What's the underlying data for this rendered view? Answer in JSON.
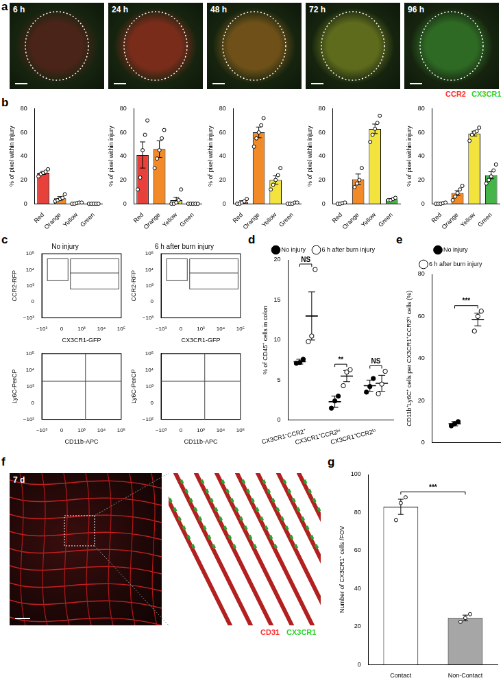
{
  "panel_labels": [
    "a",
    "b",
    "c",
    "d",
    "e",
    "f",
    "g"
  ],
  "images": {
    "a": {
      "times": [
        "6 h",
        "24 h",
        "48 h",
        "72 h",
        "96 h"
      ],
      "channels": [
        {
          "name": "CCR2",
          "color": "#ff3030"
        },
        {
          "name": "CX3CR1",
          "color": "#30d030"
        }
      ]
    },
    "f": {
      "time": "7 d",
      "channels": [
        {
          "name": "CD31",
          "color": "#ff3030"
        },
        {
          "name": "CX3CR1",
          "color": "#30d030"
        }
      ]
    }
  },
  "chart_data": [
    {
      "type": "bar",
      "categories": [
        "Red",
        "Orange",
        "Yellow",
        "Green"
      ],
      "values": [
        26,
        4.5,
        0.4,
        0
      ],
      "errors": [
        1.3,
        1.5,
        0.3,
        0
      ],
      "points": [
        [
          23,
          25,
          26,
          27,
          29
        ],
        [
          2,
          3,
          4,
          5,
          8
        ],
        [
          0,
          0,
          0.5,
          1,
          1
        ],
        [
          0,
          0,
          0,
          0,
          0
        ]
      ],
      "colors": [
        "#e8413c",
        "#f28a27",
        "#f2e33f",
        "#45b549"
      ],
      "y_label": "% of pixel within injury",
      "ylim": [
        0,
        80
      ],
      "yticks": [
        0,
        20,
        40,
        60,
        80
      ]
    },
    {
      "type": "bar",
      "categories": [
        "Red",
        "Orange",
        "Yellow",
        "Green"
      ],
      "values": [
        41,
        46,
        3,
        0
      ],
      "errors": [
        11,
        7,
        2.5,
        0
      ],
      "points": [
        [
          12,
          22,
          45,
          58,
          70
        ],
        [
          30,
          38,
          45,
          55,
          62
        ],
        [
          0,
          0,
          1,
          3,
          12
        ],
        [
          0,
          0,
          0,
          0,
          0
        ]
      ],
      "colors": [
        "#e8413c",
        "#f28a27",
        "#f2e33f",
        "#45b549"
      ],
      "y_label": "% of pixel within injury",
      "ylim": [
        0,
        80
      ],
      "yticks": [
        0,
        20,
        40,
        60,
        80
      ]
    },
    {
      "type": "bar",
      "categories": [
        "Red",
        "Orange",
        "Yellow",
        "Green"
      ],
      "values": [
        1.5,
        60,
        20,
        0.5
      ],
      "errors": [
        1,
        4.5,
        3.5,
        0.3
      ],
      "points": [
        [
          0,
          0,
          1,
          2,
          4
        ],
        [
          48,
          55,
          60,
          66,
          72
        ],
        [
          12,
          16,
          20,
          24,
          30
        ],
        [
          0,
          0,
          0,
          1,
          1
        ]
      ],
      "colors": [
        "#e8413c",
        "#f28a27",
        "#f2e33f",
        "#45b549"
      ],
      "y_label": "% of pixel within injury",
      "ylim": [
        0,
        80
      ],
      "yticks": [
        0,
        20,
        40,
        60,
        80
      ]
    },
    {
      "type": "bar",
      "categories": [
        "Red",
        "Orange",
        "Yellow",
        "Green"
      ],
      "values": [
        0.4,
        20.5,
        63,
        3.8
      ],
      "errors": [
        0.3,
        4.5,
        4,
        0.5
      ],
      "points": [
        [
          0,
          0,
          0.5,
          1
        ],
        [
          14,
          17,
          20,
          30
        ],
        [
          52,
          58,
          63,
          68,
          74
        ],
        [
          3,
          3,
          4,
          5
        ]
      ],
      "colors": [
        "#e8413c",
        "#f28a27",
        "#f2e33f",
        "#45b549"
      ],
      "y_label": "% of pixel within injury",
      "ylim": [
        0,
        80
      ],
      "yticks": [
        0,
        20,
        40,
        60,
        80
      ]
    },
    {
      "type": "bar",
      "categories": [
        "Red",
        "Orange",
        "Yellow",
        "Green"
      ],
      "values": [
        0.3,
        9,
        59,
        24
      ],
      "errors": [
        0.2,
        2,
        2,
        3
      ],
      "points": [
        [
          0,
          0,
          0,
          0.5,
          1
        ],
        [
          3,
          6,
          9,
          12,
          15
        ],
        [
          53,
          58,
          60,
          61,
          64
        ],
        [
          17,
          20,
          23,
          28,
          33
        ]
      ],
      "colors": [
        "#e8413c",
        "#f28a27",
        "#f2e33f",
        "#45b549"
      ],
      "y_label": "% of pixel within injury",
      "ylim": [
        0,
        80
      ],
      "yticks": [
        0,
        20,
        40,
        60,
        80
      ]
    },
    {
      "type": "scatter",
      "title": "No injury",
      "x_label": "CX3CR1-GFP",
      "y_label": "CCR2-RFP",
      "xticks": [
        {
          "value": -1000,
          "label": "−10³"
        },
        0,
        {
          "value": 1000,
          "label": "10³"
        },
        {
          "value": 10000,
          "label": "10⁴"
        },
        {
          "value": 100000,
          "label": "10⁵"
        }
      ],
      "yticks": [
        {
          "value": -1000,
          "label": "−10³"
        },
        0,
        {
          "value": 1000,
          "label": "10³"
        },
        {
          "value": 10000,
          "label": "10⁴"
        },
        {
          "value": 100000,
          "label": "10⁵"
        }
      ]
    },
    {
      "type": "scatter",
      "title": "6 h after burn injury",
      "x_label": "CX3CR1-GFP",
      "y_label": "CCR2-RFP",
      "xticks": [
        {
          "value": -1000,
          "label": "−10³"
        },
        0,
        {
          "value": 1000,
          "label": "10³"
        },
        {
          "value": 10000,
          "label": "10⁴"
        },
        {
          "value": 100000,
          "label": "10⁵"
        }
      ],
      "yticks": [
        {
          "value": -1000,
          "label": "−10³"
        },
        0,
        {
          "value": 1000,
          "label": "10³"
        },
        {
          "value": 10000,
          "label": "10⁴"
        },
        {
          "value": 100000,
          "label": "10⁵"
        }
      ]
    },
    {
      "type": "scatter",
      "x_label": "CD11b-APC",
      "y_label": "Ly6C-PerCP",
      "xticks": [
        {
          "value": -1000,
          "label": "−10³"
        },
        0,
        {
          "value": 1000,
          "label": "10³"
        },
        {
          "value": 10000,
          "label": "10⁴"
        },
        {
          "value": 100000,
          "label": "10⁵"
        }
      ],
      "yticks": [
        {
          "value": -100,
          "label": "−10²"
        },
        0,
        {
          "value": 1000,
          "label": "10³"
        },
        {
          "value": 10000,
          "label": "10⁴"
        },
        {
          "value": 100000,
          "label": "10⁵"
        }
      ]
    },
    {
      "type": "scatter",
      "x_label": "CD11b-APC",
      "y_label": "Ly6C-PerCP",
      "xticks": [
        {
          "value": -1000,
          "label": "−10³"
        },
        0,
        {
          "value": 1000,
          "label": "10³"
        },
        {
          "value": 10000,
          "label": "10⁴"
        },
        {
          "value": 100000,
          "label": "10⁵"
        }
      ],
      "yticks": [
        {
          "value": -100,
          "label": "−10²"
        },
        0,
        {
          "value": 1000,
          "label": "10³"
        },
        {
          "value": 10000,
          "label": "10⁴"
        },
        {
          "value": 100000,
          "label": "10⁵"
        }
      ]
    },
    {
      "type": "scatter",
      "categories": [
        "CX3CR1⁻CCR2⁺",
        "CX3CR1⁺CCR2ʰⁱ",
        "CX3CR1⁺CCR2ˡᵒ"
      ],
      "series": [
        {
          "name": "No injury",
          "marker": "circle",
          "color": "#000000",
          "values": [
            7.3,
            2.3,
            4.3
          ],
          "errors": [
            0.3,
            0.7,
            0.7
          ],
          "points": [
            [
              7.1,
              7.2,
              7.6
            ],
            [
              1.5,
              2.4,
              3.0
            ],
            [
              3.5,
              4.2,
              5.2
            ]
          ]
        },
        {
          "name": "6 h after burn injury",
          "marker": "open_circle",
          "color": "#000000",
          "values": [
            13,
            5.5,
            4.6
          ],
          "errors": [
            3,
            0.7,
            1
          ],
          "points": [
            [
              9.8,
              10.5,
              18.8
            ],
            [
              4.3,
              6.0,
              6.3
            ],
            [
              3.3,
              4.5,
              6.1
            ]
          ]
        }
      ],
      "annotations": [
        "NS",
        "**",
        "NS"
      ],
      "y_label": "% of CD45⁺ cells in colon",
      "ylim": [
        0,
        20
      ],
      "yticks": [
        0,
        5,
        10,
        15,
        20
      ],
      "legend": "top"
    },
    {
      "type": "scatter",
      "categories": [
        null
      ],
      "series": [
        {
          "name": "No injury",
          "marker": "circle",
          "color": "#000000",
          "values": [
            9
          ],
          "errors": [
            1
          ],
          "points": [
            [
              8,
              9,
              10
            ]
          ]
        },
        {
          "name": "6 h after burn injury",
          "marker": "open_circle",
          "color": "#000000",
          "values": [
            58.5
          ],
          "errors": [
            3
          ],
          "points": [
            [
              53,
              60,
              62.5
            ]
          ]
        }
      ],
      "annotations": [
        "***"
      ],
      "y_label": "CD11b⁺Ly6C⁺ cells per CX3CR1⁺CCR2ʰⁱ cells (%)",
      "ylim": [
        0,
        80
      ],
      "yticks": [
        0,
        20,
        40,
        60,
        80
      ],
      "legend": "top",
      "tick_labels": "y"
    },
    {
      "type": "bar",
      "categories": [
        "Contact",
        "Non-Contact"
      ],
      "values": [
        83,
        24.5
      ],
      "errors": [
        4,
        1.5
      ],
      "points": [
        [
          76,
          85,
          88
        ],
        [
          22.5,
          24.5,
          26.5
        ]
      ],
      "colors": [
        "#ffffff",
        "#a6a6a6"
      ],
      "y_label": "Number of CX3CR1⁺ cells /FOV",
      "ylim": [
        0,
        100
      ],
      "yticks": [
        0,
        20,
        40,
        60,
        80,
        100
      ],
      "annotations": [
        "***"
      ]
    }
  ]
}
